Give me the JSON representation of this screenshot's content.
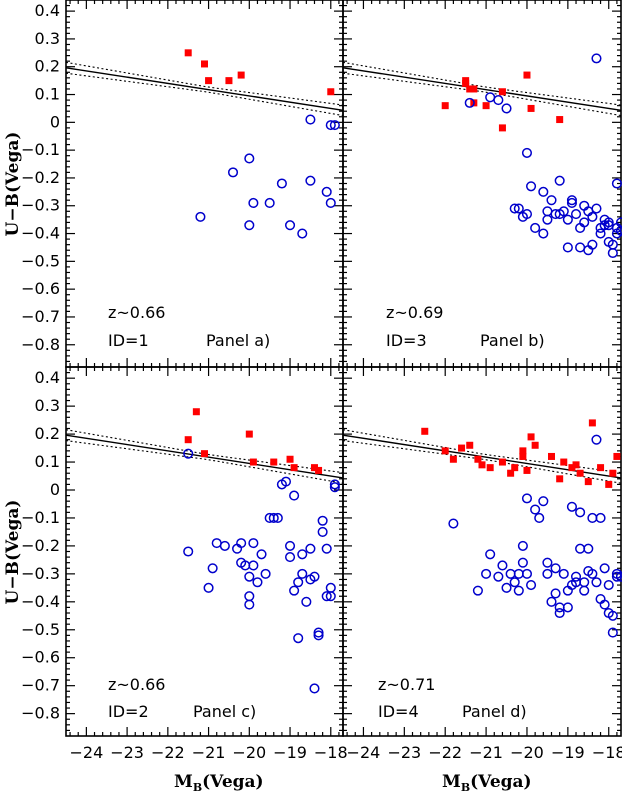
{
  "figure": {
    "xlabel_main": "M",
    "xlabel_sub": "B",
    "xlabel_rest": "(Vega)",
    "ylabel": "U−B(Vega)"
  },
  "chart_data": [
    {
      "type": "scatter",
      "panel_label": "Panel a)",
      "redshift_label": "z~0.66",
      "id_label": "ID=1",
      "xlim": [
        -24.5,
        -17.7
      ],
      "ylim": [
        -0.88,
        0.44
      ],
      "x_ticks": [],
      "y_ticks": [
        "0.4",
        "0.3",
        "0.2",
        "0.1",
        "0",
        "-0.1",
        "-0.2",
        "-0.3",
        "-0.4",
        "-0.5",
        "-0.6",
        "-0.7",
        "-0.8"
      ],
      "fit": {
        "slope": -0.0225,
        "intercept": -0.355,
        "dashed_offset": 0.018
      },
      "series": [
        {
          "marker": "red-square",
          "color": "#ff0000",
          "x": [
            -21.5,
            -21.1,
            -21.0,
            -20.5,
            -20.2,
            -18.0
          ],
          "y": [
            0.25,
            0.21,
            0.15,
            0.15,
            0.17,
            0.11
          ]
        },
        {
          "marker": "blue-circle",
          "color": "#0000cc",
          "x": [
            -21.2,
            -20.4,
            -20.0,
            -20.0,
            -19.9,
            -19.5,
            -19.2,
            -19.0,
            -18.7,
            -18.5,
            -18.5,
            -18.1,
            -18.0,
            -18.0,
            -17.9
          ],
          "y": [
            -0.34,
            -0.18,
            -0.13,
            -0.37,
            -0.29,
            -0.29,
            -0.22,
            -0.37,
            -0.4,
            0.01,
            -0.21,
            -0.25,
            -0.29,
            -0.01,
            -0.01
          ]
        }
      ]
    },
    {
      "type": "scatter",
      "panel_label": "Panel b)",
      "redshift_label": "z~0.69",
      "id_label": "ID=3",
      "xlim": [
        -24.5,
        -17.7
      ],
      "ylim": [
        -0.88,
        0.44
      ],
      "x_ticks": [],
      "y_ticks": [],
      "fit": {
        "slope": -0.0225,
        "intercept": -0.355,
        "dashed_offset": 0.018
      },
      "series": [
        {
          "marker": "red-square",
          "color": "#ff0000",
          "x": [
            -22.0,
            -21.5,
            -21.5,
            -21.4,
            -21.3,
            -21.3,
            -21.0,
            -20.6,
            -20.6,
            -20.0,
            -19.9,
            -19.2
          ],
          "y": [
            0.06,
            0.14,
            0.15,
            0.12,
            0.07,
            0.12,
            0.06,
            -0.02,
            0.11,
            0.17,
            0.05,
            0.01
          ]
        },
        {
          "marker": "blue-circle",
          "color": "#0000cc",
          "x": [
            -21.4,
            -20.9,
            -20.7,
            -20.5,
            -20.3,
            -20.2,
            -20.0,
            -20.1,
            -20.0,
            -19.9,
            -19.8,
            -19.6,
            -19.6,
            -19.5,
            -19.5,
            -19.4,
            -19.3,
            -19.2,
            -19.2,
            -19.1,
            -19.0,
            -19.0,
            -18.9,
            -18.9,
            -18.8,
            -18.7,
            -18.7,
            -18.6,
            -18.6,
            -18.5,
            -18.5,
            -18.4,
            -18.4,
            -18.3,
            -18.3,
            -18.2,
            -18.2,
            -18.1,
            -18.1,
            -18.0,
            -18.0,
            -18.0,
            -17.9,
            -17.9,
            -17.8,
            -17.8,
            -17.8,
            -17.7,
            -17.7
          ],
          "y": [
            0.07,
            0.09,
            0.08,
            0.05,
            -0.31,
            -0.31,
            -0.33,
            -0.34,
            -0.11,
            -0.23,
            -0.38,
            -0.4,
            -0.25,
            -0.35,
            -0.32,
            -0.28,
            -0.33,
            -0.21,
            -0.33,
            -0.32,
            -0.35,
            -0.45,
            -0.29,
            -0.28,
            -0.33,
            -0.38,
            -0.45,
            -0.3,
            -0.36,
            -0.32,
            -0.46,
            -0.34,
            -0.44,
            0.23,
            -0.31,
            -0.38,
            -0.4,
            -0.35,
            -0.37,
            -0.43,
            -0.36,
            -0.37,
            -0.44,
            -0.47,
            -0.22,
            -0.4,
            -0.38,
            -0.36,
            -0.39
          ]
        }
      ]
    },
    {
      "type": "scatter",
      "panel_label": "Panel c)",
      "redshift_label": "z~0.66",
      "id_label": "ID=2",
      "xlim": [
        -24.5,
        -17.7
      ],
      "ylim": [
        -0.88,
        0.44
      ],
      "x_ticks": [
        "−24",
        "−23",
        "−22",
        "−21",
        "−20",
        "−19",
        "−18"
      ],
      "y_ticks": [
        "0.4",
        "0.3",
        "0.2",
        "0.1",
        "0",
        "-0.1",
        "-0.2",
        "-0.3",
        "-0.4",
        "-0.5",
        "-0.6",
        "-0.7",
        "-0.8"
      ],
      "fit": {
        "slope": -0.0225,
        "intercept": -0.355,
        "dashed_offset": 0.018
      },
      "series": [
        {
          "marker": "red-square",
          "color": "#ff0000",
          "x": [
            -21.5,
            -21.3,
            -21.1,
            -20.0,
            -19.9,
            -19.4,
            -19.0,
            -18.9,
            -18.4,
            -18.3
          ],
          "y": [
            0.18,
            0.28,
            0.13,
            0.2,
            0.1,
            0.1,
            0.11,
            0.08,
            0.08,
            0.07
          ]
        },
        {
          "marker": "blue-circle",
          "color": "#0000cc",
          "x": [
            -21.5,
            -21.5,
            -21.0,
            -20.9,
            -20.8,
            -20.6,
            -20.3,
            -20.2,
            -20.2,
            -20.1,
            -20.0,
            -20.0,
            -20.0,
            -19.9,
            -19.9,
            -19.8,
            -19.7,
            -19.6,
            -19.5,
            -19.4,
            -19.3,
            -19.2,
            -19.1,
            -19.0,
            -19.0,
            -18.9,
            -18.9,
            -18.8,
            -18.8,
            -18.7,
            -18.7,
            -18.6,
            -18.5,
            -18.5,
            -18.4,
            -18.4,
            -18.3,
            -18.3,
            -18.2,
            -18.2,
            -18.1,
            -18.1,
            -18.0,
            -18.0,
            -17.9,
            -17.9
          ],
          "y": [
            0.13,
            -0.22,
            -0.35,
            -0.28,
            -0.19,
            -0.2,
            -0.21,
            -0.19,
            -0.26,
            -0.27,
            -0.31,
            -0.38,
            -0.41,
            -0.19,
            -0.27,
            -0.33,
            -0.23,
            -0.3,
            -0.1,
            -0.1,
            -0.1,
            0.02,
            0.03,
            -0.24,
            -0.2,
            -0.02,
            -0.36,
            -0.33,
            -0.53,
            -0.23,
            -0.3,
            -0.4,
            -0.32,
            -0.21,
            -0.31,
            -0.71,
            -0.52,
            -0.51,
            -0.11,
            -0.15,
            -0.21,
            -0.38,
            -0.35,
            -0.38,
            0.01,
            0.02
          ]
        }
      ]
    },
    {
      "type": "scatter",
      "panel_label": "Panel d)",
      "redshift_label": "z~0.71",
      "id_label": "ID=4",
      "xlim": [
        -24.5,
        -17.7
      ],
      "ylim": [
        -0.88,
        0.44
      ],
      "x_ticks": [
        "−24",
        "−23",
        "−22",
        "−21",
        "−20",
        "−19",
        "−18"
      ],
      "y_ticks": [],
      "fit": {
        "slope": -0.0225,
        "intercept": -0.355,
        "dashed_offset": 0.018
      },
      "series": [
        {
          "marker": "red-square",
          "color": "#ff0000",
          "x": [
            -22.5,
            -22.0,
            -21.8,
            -21.6,
            -21.4,
            -21.2,
            -21.1,
            -20.9,
            -20.6,
            -20.4,
            -20.3,
            -20.1,
            -20.1,
            -20.0,
            -19.9,
            -19.8,
            -19.4,
            -19.2,
            -19.1,
            -18.9,
            -18.8,
            -18.7,
            -18.5,
            -18.4,
            -18.2,
            -18.0,
            -17.9,
            -17.8
          ],
          "y": [
            0.21,
            0.14,
            0.11,
            0.15,
            0.16,
            0.11,
            0.09,
            0.08,
            0.1,
            0.06,
            0.08,
            0.12,
            0.14,
            0.07,
            0.19,
            0.16,
            0.12,
            0.04,
            0.1,
            0.08,
            0.09,
            0.06,
            0.03,
            0.24,
            0.08,
            0.02,
            0.06,
            0.12
          ]
        },
        {
          "marker": "blue-circle",
          "color": "#0000cc",
          "x": [
            -21.8,
            -21.2,
            -21.0,
            -20.9,
            -20.7,
            -20.6,
            -20.5,
            -20.4,
            -20.3,
            -20.2,
            -20.2,
            -20.1,
            -20.1,
            -20.0,
            -20.0,
            -19.9,
            -19.8,
            -19.7,
            -19.6,
            -19.5,
            -19.5,
            -19.4,
            -19.3,
            -19.3,
            -19.2,
            -19.2,
            -19.1,
            -19.0,
            -19.0,
            -18.9,
            -18.9,
            -18.8,
            -18.8,
            -18.7,
            -18.7,
            -18.6,
            -18.6,
            -18.5,
            -18.5,
            -18.4,
            -18.4,
            -18.3,
            -18.3,
            -18.2,
            -18.2,
            -18.1,
            -18.1,
            -18.0,
            -18.0,
            -17.9,
            -17.9,
            -17.8,
            -17.8,
            -17.7
          ],
          "y": [
            -0.12,
            -0.36,
            -0.3,
            -0.23,
            -0.31,
            -0.27,
            -0.35,
            -0.3,
            -0.33,
            -0.3,
            -0.36,
            -0.26,
            -0.2,
            -0.3,
            -0.03,
            -0.34,
            -0.07,
            -0.1,
            -0.04,
            -0.26,
            -0.3,
            -0.4,
            -0.28,
            -0.37,
            -0.42,
            -0.44,
            -0.3,
            -0.42,
            -0.36,
            -0.34,
            -0.06,
            -0.31,
            -0.33,
            -0.21,
            -0.08,
            -0.33,
            -0.36,
            -0.29,
            -0.21,
            -0.1,
            -0.3,
            0.18,
            -0.33,
            -0.1,
            -0.39,
            -0.28,
            -0.41,
            -0.34,
            -0.44,
            -0.45,
            -0.51,
            -0.31,
            -0.3,
            -0.31
          ]
        }
      ]
    }
  ]
}
